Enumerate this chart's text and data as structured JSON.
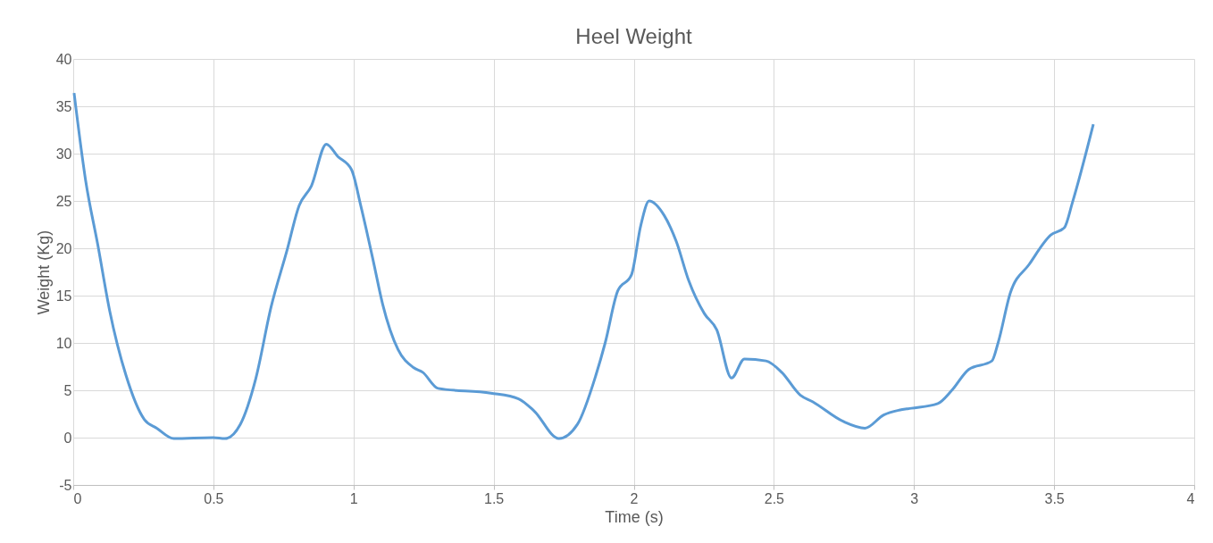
{
  "chart_data": {
    "type": "line",
    "title": "Heel Weight",
    "xlabel": "Time (s)",
    "ylabel": "Weight (Kg)",
    "x": [
      0.003,
      0.044,
      0.088,
      0.13,
      0.188,
      0.254,
      0.298,
      0.359,
      0.5,
      0.541,
      0.596,
      0.651,
      0.706,
      0.762,
      0.806,
      0.85,
      0.903,
      0.944,
      0.993,
      1.026,
      1.071,
      1.104,
      1.159,
      1.214,
      1.247,
      1.302,
      1.49,
      1.589,
      1.645,
      1.733,
      1.799,
      1.865,
      1.898,
      1.943,
      1.992,
      2.025,
      2.055,
      2.108,
      2.152,
      2.196,
      2.252,
      2.296,
      2.349,
      2.395,
      2.472,
      2.528,
      2.594,
      2.638,
      2.748,
      2.825,
      2.892,
      2.947,
      2.991,
      3.085,
      3.135,
      3.195,
      3.278,
      3.3,
      3.344,
      3.411,
      3.488,
      3.537,
      3.565,
      3.64
    ],
    "series": [
      {
        "color": "#5b9bd5",
        "values": [
          36.4,
          27.2,
          20.3,
          13.4,
          6.6,
          1.9,
          1.0,
          -0.1,
          0,
          -0.1,
          1.4,
          6.2,
          13.8,
          19.7,
          24.5,
          26.6,
          31.0,
          29.7,
          28.3,
          24.5,
          18.6,
          14.1,
          9.3,
          7.4,
          6.9,
          5.2,
          4.7,
          4.1,
          2.8,
          -0.1,
          1.4,
          6.6,
          10.0,
          15.5,
          17.2,
          22.4,
          25.0,
          23.5,
          20.7,
          16.6,
          13.1,
          11.4,
          6.3,
          8.3,
          8.1,
          6.9,
          4.5,
          3.8,
          1.7,
          1.0,
          2.4,
          2.9,
          3.1,
          3.6,
          5.0,
          7.2,
          8.1,
          10.0,
          15.3,
          18.3,
          21.4,
          22.2,
          24.8,
          33.1
        ]
      }
    ],
    "xlim": [
      0,
      4
    ],
    "xticks": [
      0,
      0.5,
      1,
      1.5,
      2,
      2.5,
      3,
      3.5,
      4
    ],
    "ylim": [
      -5,
      40
    ],
    "yticks": [
      -5,
      0,
      5,
      10,
      15,
      20,
      25,
      30,
      35,
      40
    ],
    "grid": true,
    "legend": false,
    "marker": "none",
    "line_style": "solid"
  }
}
